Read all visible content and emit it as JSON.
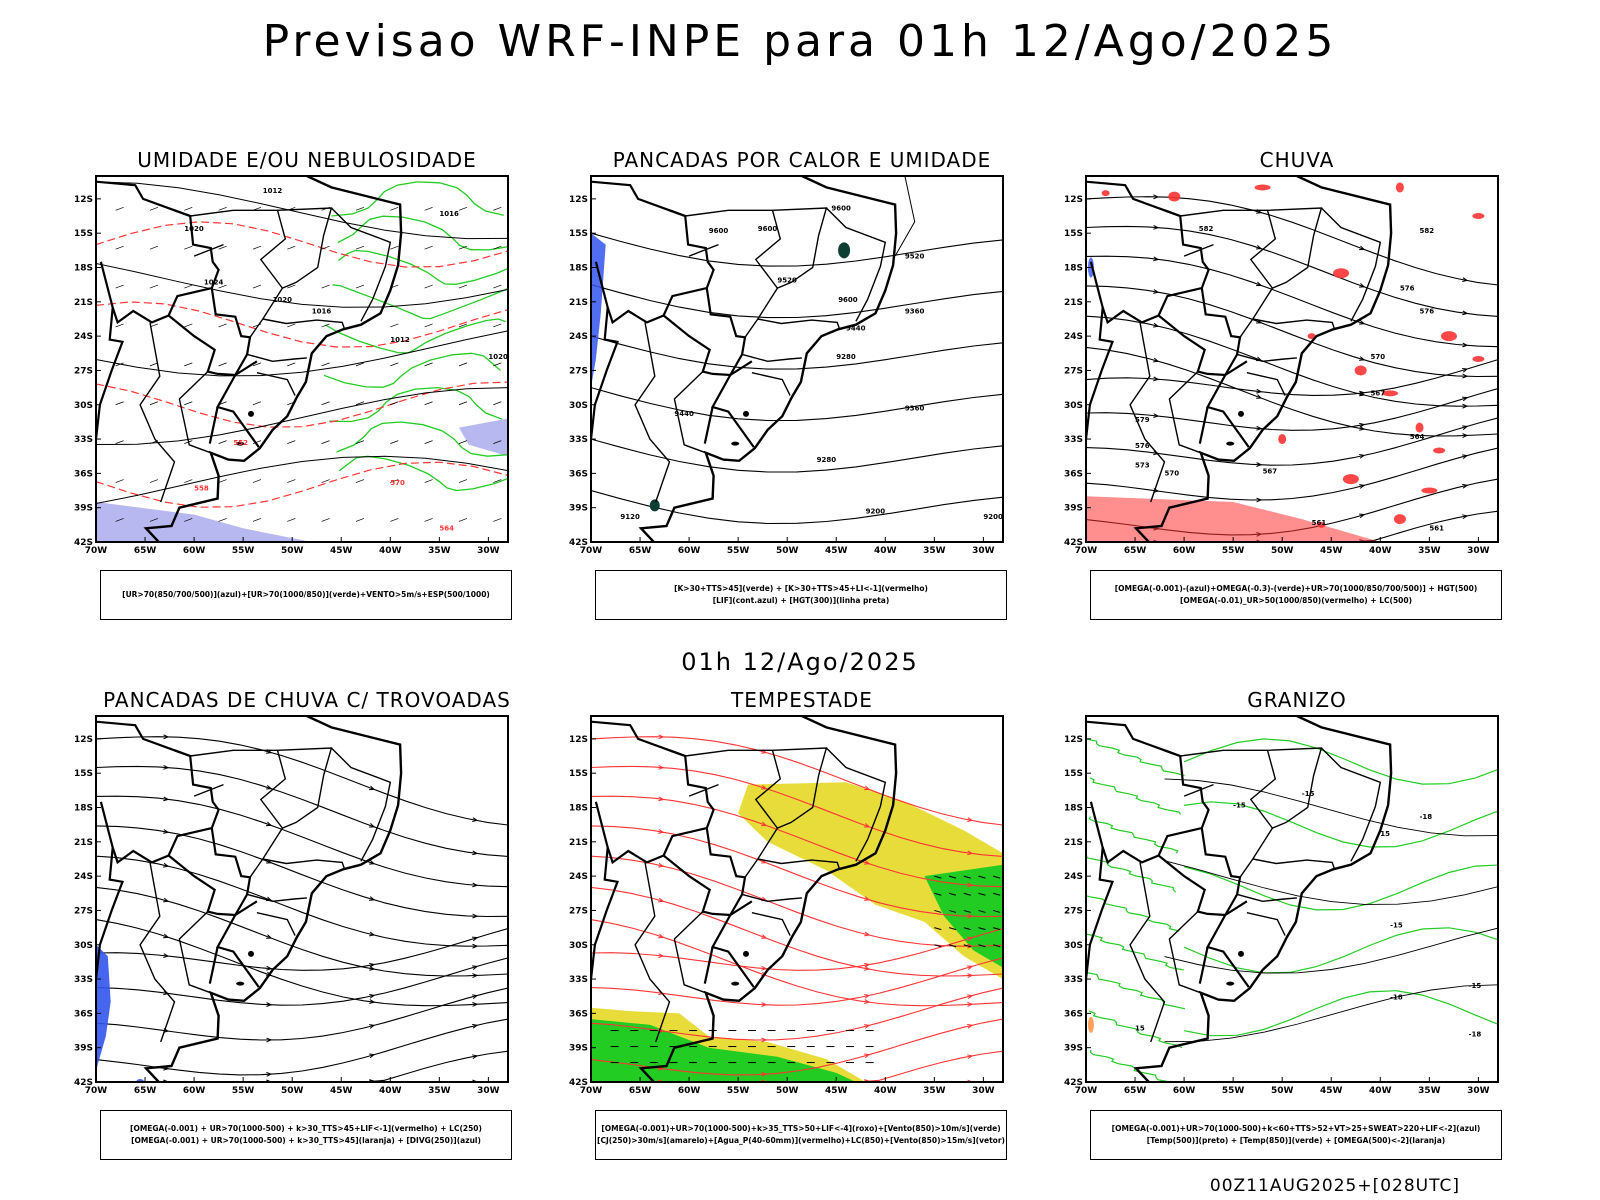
{
  "header": {
    "title": "Previsao WRF-INPE  para 01h 12/Ago/2025"
  },
  "middle": {
    "title": "01h 12/Ago/2025"
  },
  "footer": {
    "run_label": "00Z11AUG2025+[028UTC]"
  },
  "axes": {
    "lat_labels": [
      "12S",
      "15S",
      "18S",
      "21S",
      "24S",
      "27S",
      "30S",
      "33S",
      "36S",
      "39S",
      "42S"
    ],
    "lon_labels": [
      "70W",
      "65W",
      "60W",
      "55W",
      "50W",
      "45W",
      "40W",
      "35W",
      "30W"
    ]
  },
  "colors": {
    "green": "#22cc22",
    "red": "#ff3333",
    "blue": "#3355ee",
    "yellow": "#e8dc3a",
    "lavender": "#b8b8f0",
    "darkgreen": "#0e3d33",
    "black": "#000000"
  },
  "panels": [
    {
      "title": "UMIDADE E/OU NEBULOSIDADE",
      "legend": [
        "[UR>70(850/700/500)](azul)+[UR>70(1000/850)](verde)+VENTO>5m/s+ESP(500/1000)"
      ],
      "contours": [
        "1012",
        "1016",
        "1020",
        "1024",
        "1020",
        "1016",
        "1012",
        "1020",
        "552",
        "570",
        "564",
        "558"
      ]
    },
    {
      "title": "PANCADAS POR CALOR E UMIDADE",
      "legend": [
        "[K>30+TTS>45](verde) + [K>30+TTS>45+LI<-1](vermelho)",
        "[LIF](cont.azul) + [HGT(300)](linha preta)"
      ],
      "contours": [
        "9600",
        "9600",
        "9600",
        "9520",
        "9520",
        "9440",
        "9360",
        "9280",
        "9360",
        "9280",
        "9200",
        "9200",
        "9120",
        "9440",
        "9600"
      ]
    },
    {
      "title": "CHUVA",
      "legend": [
        "[OMEGA(-0.001)-(azul)+OMEGA(-0.3)-(verde)+UR>70(1000/850/700/500)] + HGT(500)",
        "[OMEGA(-0.01)_UR>50(1000/850)(vermelho) + LC(500)"
      ],
      "contours": [
        "582",
        "582",
        "576",
        "576",
        "570",
        "567",
        "564",
        "561",
        "567",
        "561",
        "579",
        "576",
        "573",
        "570"
      ]
    },
    {
      "title": "PANCADAS DE CHUVA C/ TROVOADAS",
      "legend": [
        "[OMEGA(-0.001) + UR>70(1000-500) + k>30_TTS>45+LIF<-1](vermelho) + LC(250)",
        "[OMEGA(-0.001) + UR>70(1000-500) + k>30_TTS>45](laranja) + [DIVG(250)](azul)"
      ],
      "contours": []
    },
    {
      "title": "TEMPESTADE",
      "legend": [
        "[OMEGA(-0.001)+UR>70(1000-500)+k>35_TTS>50+LIF<-4](roxo)+[Vento(850)>10m/s](verde)",
        "[CJ(250)>30m/s](amarelo)+[Agua_P(40-60mm)](vermelho)+LC(850)+[Vento(850)>15m/s](vetor)"
      ],
      "contours": []
    },
    {
      "title": "GRANIZO",
      "legend": [
        "[OMEGA(-0.001)+UR>70(1000-500)+k<60+TTS>52+VT>25+SWEAT>220+LIF<-2](azul)",
        "[Temp(500)](preto) + [Temp(850)](verde) + [OMEGA(500)<-2](laranja)"
      ],
      "contours": [
        "-15",
        "-18",
        "-15",
        "-18",
        "-18",
        "-15",
        "-15",
        "15",
        "15"
      ]
    }
  ]
}
